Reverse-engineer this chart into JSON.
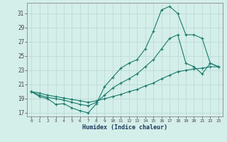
{
  "xlabel": "Humidex (Indice chaleur)",
  "background_color": "#d4eeea",
  "grid_color": "#b8d8d2",
  "line_color": "#1a7a6a",
  "xlim": [
    -0.5,
    23.5
  ],
  "ylim": [
    16.5,
    32.5
  ],
  "xticks": [
    0,
    1,
    2,
    3,
    4,
    5,
    6,
    7,
    8,
    9,
    10,
    11,
    12,
    13,
    14,
    15,
    16,
    17,
    18,
    19,
    20,
    21,
    22,
    23
  ],
  "yticks": [
    17,
    19,
    21,
    23,
    25,
    27,
    29,
    31
  ],
  "series_main": {
    "x": [
      0,
      1,
      2,
      3,
      4,
      5,
      6,
      7,
      8,
      9,
      10,
      11,
      12,
      13,
      14,
      15,
      16,
      17,
      18,
      19,
      20,
      21,
      22,
      23
    ],
    "y": [
      20.0,
      19.3,
      19.0,
      18.2,
      18.3,
      17.7,
      17.3,
      17.0,
      18.3,
      20.7,
      22.0,
      23.3,
      24.0,
      24.5,
      26.0,
      28.5,
      31.5,
      32.0,
      31.0,
      28.0,
      28.0,
      27.5,
      24.0,
      23.5
    ]
  },
  "series_mid": {
    "x": [
      0,
      1,
      2,
      3,
      4,
      5,
      6,
      7,
      8,
      9,
      10,
      11,
      12,
      13,
      14,
      15,
      16,
      17,
      18,
      19,
      20,
      21,
      22,
      23
    ],
    "y": [
      20.0,
      19.5,
      19.2,
      19.0,
      18.8,
      18.5,
      18.2,
      18.0,
      18.5,
      19.5,
      20.5,
      21.2,
      21.8,
      22.5,
      23.5,
      24.5,
      26.0,
      27.5,
      28.0,
      24.0,
      23.5,
      22.5,
      24.0,
      23.5
    ]
  },
  "series_low": {
    "x": [
      0,
      1,
      2,
      3,
      4,
      5,
      6,
      7,
      8,
      9,
      10,
      11,
      12,
      13,
      14,
      15,
      16,
      17,
      18,
      19,
      20,
      21,
      22,
      23
    ],
    "y": [
      20.0,
      19.8,
      19.5,
      19.3,
      19.1,
      18.9,
      18.7,
      18.5,
      18.7,
      19.0,
      19.3,
      19.6,
      20.0,
      20.3,
      20.8,
      21.2,
      21.8,
      22.3,
      22.8,
      23.0,
      23.2,
      23.3,
      23.5,
      23.5
    ]
  }
}
